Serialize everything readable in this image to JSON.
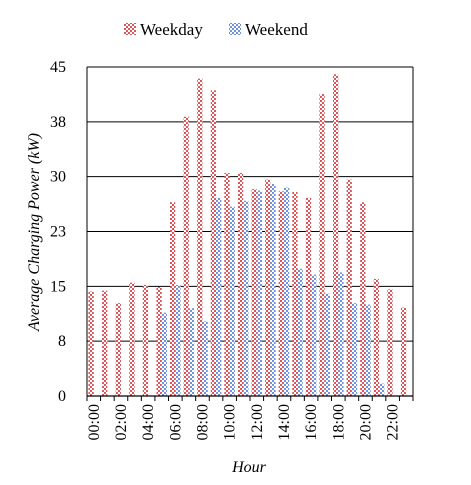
{
  "chart_data": {
    "type": "bar",
    "xlabel": "Hour",
    "ylabel": "Average Charging Power (kW)",
    "ylim": [
      0,
      45
    ],
    "yticks": [
      "0",
      "8",
      "15",
      "23",
      "30",
      "38",
      "45"
    ],
    "x_tick_labels": [
      "00:00",
      "02:00",
      "04:00",
      "06:00",
      "08:00",
      "10:00",
      "12:00",
      "14:00",
      "16:00",
      "18:00",
      "20:00",
      "22:00"
    ],
    "categories": [
      "00:00",
      "01:00",
      "02:00",
      "03:00",
      "04:00",
      "05:00",
      "06:00",
      "07:00",
      "08:00",
      "09:00",
      "10:00",
      "11:00",
      "12:00",
      "13:00",
      "14:00",
      "15:00",
      "16:00",
      "17:00",
      "18:00",
      "19:00",
      "20:00",
      "21:00",
      "22:00",
      "23:00"
    ],
    "grid": true,
    "legend_position": "top",
    "series": [
      {
        "name": "Weekday",
        "color": "#d9575b",
        "values": [
          14.3,
          14.4,
          12.7,
          15.5,
          15.2,
          14.9,
          26.5,
          38.2,
          43.4,
          41.8,
          30.5,
          30.5,
          28.3,
          29.6,
          28.0,
          27.9,
          27.1,
          41.3,
          44.0,
          29.6,
          26.5,
          16.0,
          14.6,
          12.1
        ]
      },
      {
        "name": "Weekend",
        "color": "#6f93e0",
        "values": [
          0,
          0,
          0,
          0,
          0,
          11.4,
          15.2,
          12.0,
          10.2,
          27.1,
          25.9,
          26.7,
          28.1,
          29.0,
          28.5,
          17.4,
          16.6,
          14.0,
          16.9,
          12.7,
          12.5,
          1.7,
          0,
          0
        ]
      }
    ]
  }
}
